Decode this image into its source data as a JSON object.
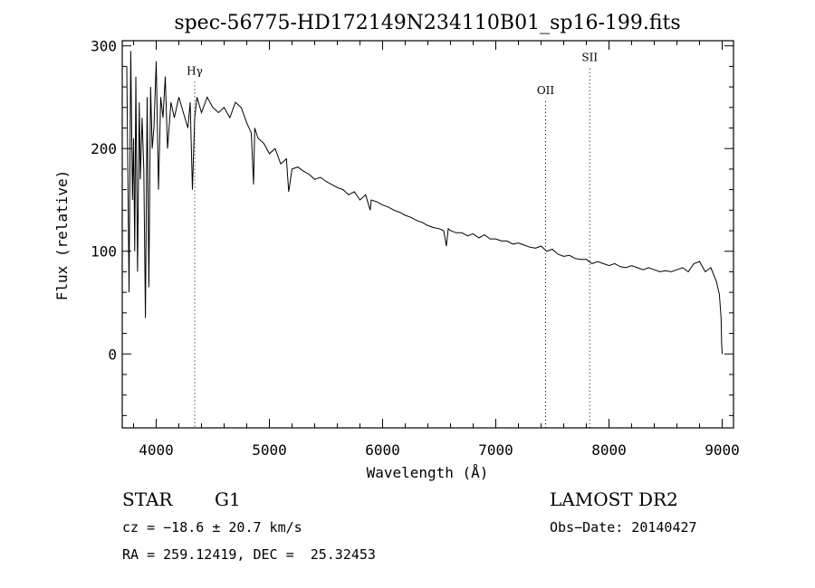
{
  "chart_data": {
    "type": "line",
    "title": "spec-56775-HD172149N234110B01_sp16-199.fits",
    "xlabel": "Wavelength (Å)",
    "ylabel": "Flux (relative)",
    "xlim": [
      3700,
      9100
    ],
    "ylim": [
      -72,
      305
    ],
    "x_ticks": [
      4000,
      5000,
      6000,
      7000,
      8000,
      9000
    ],
    "x_tick_labels": [
      "4000",
      "5000",
      "6000",
      "7000",
      "8000",
      "9000"
    ],
    "y_ticks": [
      0,
      100,
      200,
      300
    ],
    "y_tick_labels": [
      "0",
      "100",
      "200",
      "300"
    ],
    "grid": false,
    "line_color": "#000000",
    "series": [
      {
        "x": [
          3740,
          3760,
          3775,
          3790,
          3800,
          3810,
          3820,
          3835,
          3850,
          3860,
          3875,
          3890,
          3905,
          3920,
          3935,
          3950,
          3965,
          3980,
          4000,
          4020,
          4040,
          4060,
          4080,
          4100,
          4130,
          4160,
          4200,
          4240,
          4280,
          4300,
          4320,
          4340,
          4360,
          4400,
          4450,
          4500,
          4550,
          4600,
          4650,
          4700,
          4750,
          4800,
          4840,
          4860,
          4870,
          4900,
          4950,
          5000,
          5050,
          5100,
          5150,
          5170,
          5200,
          5250,
          5300,
          5350,
          5400,
          5450,
          5500,
          5550,
          5600,
          5650,
          5700,
          5750,
          5800,
          5850,
          5890,
          5900,
          5950,
          6000,
          6050,
          6100,
          6150,
          6200,
          6250,
          6300,
          6350,
          6400,
          6450,
          6500,
          6540,
          6563,
          6580,
          6600,
          6650,
          6700,
          6750,
          6800,
          6850,
          6900,
          6950,
          7000,
          7050,
          7100,
          7150,
          7200,
          7250,
          7300,
          7350,
          7400,
          7450,
          7500,
          7550,
          7600,
          7650,
          7700,
          7750,
          7800,
          7850,
          7900,
          7950,
          8000,
          8050,
          8100,
          8150,
          8200,
          8250,
          8300,
          8350,
          8400,
          8450,
          8500,
          8550,
          8600,
          8650,
          8700,
          8750,
          8800,
          8850,
          8900,
          8950,
          8975,
          8990,
          8995,
          9000
        ],
        "y": [
          280,
          60,
          295,
          150,
          210,
          100,
          270,
          80,
          245,
          170,
          230,
          180,
          35,
          250,
          65,
          260,
          200,
          220,
          285,
          160,
          250,
          230,
          270,
          200,
          245,
          230,
          250,
          235,
          220,
          245,
          160,
          230,
          250,
          235,
          250,
          240,
          235,
          240,
          230,
          245,
          240,
          225,
          215,
          165,
          220,
          210,
          205,
          195,
          200,
          185,
          190,
          158,
          180,
          182,
          178,
          175,
          170,
          172,
          168,
          165,
          162,
          160,
          155,
          158,
          150,
          155,
          140,
          150,
          148,
          145,
          143,
          140,
          138,
          135,
          133,
          130,
          128,
          125,
          123,
          122,
          120,
          105,
          122,
          120,
          118,
          118,
          115,
          117,
          113,
          116,
          112,
          112,
          110,
          110,
          107,
          108,
          106,
          104,
          103,
          105,
          100,
          102,
          97,
          95,
          96,
          93,
          92,
          92,
          88,
          90,
          88,
          86,
          88,
          85,
          84,
          86,
          84,
          82,
          84,
          82,
          80,
          81,
          80,
          82,
          84,
          80,
          88,
          90,
          80,
          84,
          70,
          58,
          35,
          10,
          0
        ]
      }
    ],
    "annotations": [
      {
        "label": "Hγ",
        "x": 4340,
        "y": 272
      },
      {
        "label": "OII",
        "x": 7440,
        "y": 253
      },
      {
        "label": "SII",
        "x": 7830,
        "y": 285
      }
    ]
  },
  "info": {
    "object_class": "STAR",
    "subclass": "G1",
    "survey": "LAMOST DR2",
    "redshift": "cz = −18.6 ± 20.7 km/s",
    "obs_date": "Obs−Date: 20140427",
    "coords": "RA = 259.12419, DEC =  25.32453"
  }
}
